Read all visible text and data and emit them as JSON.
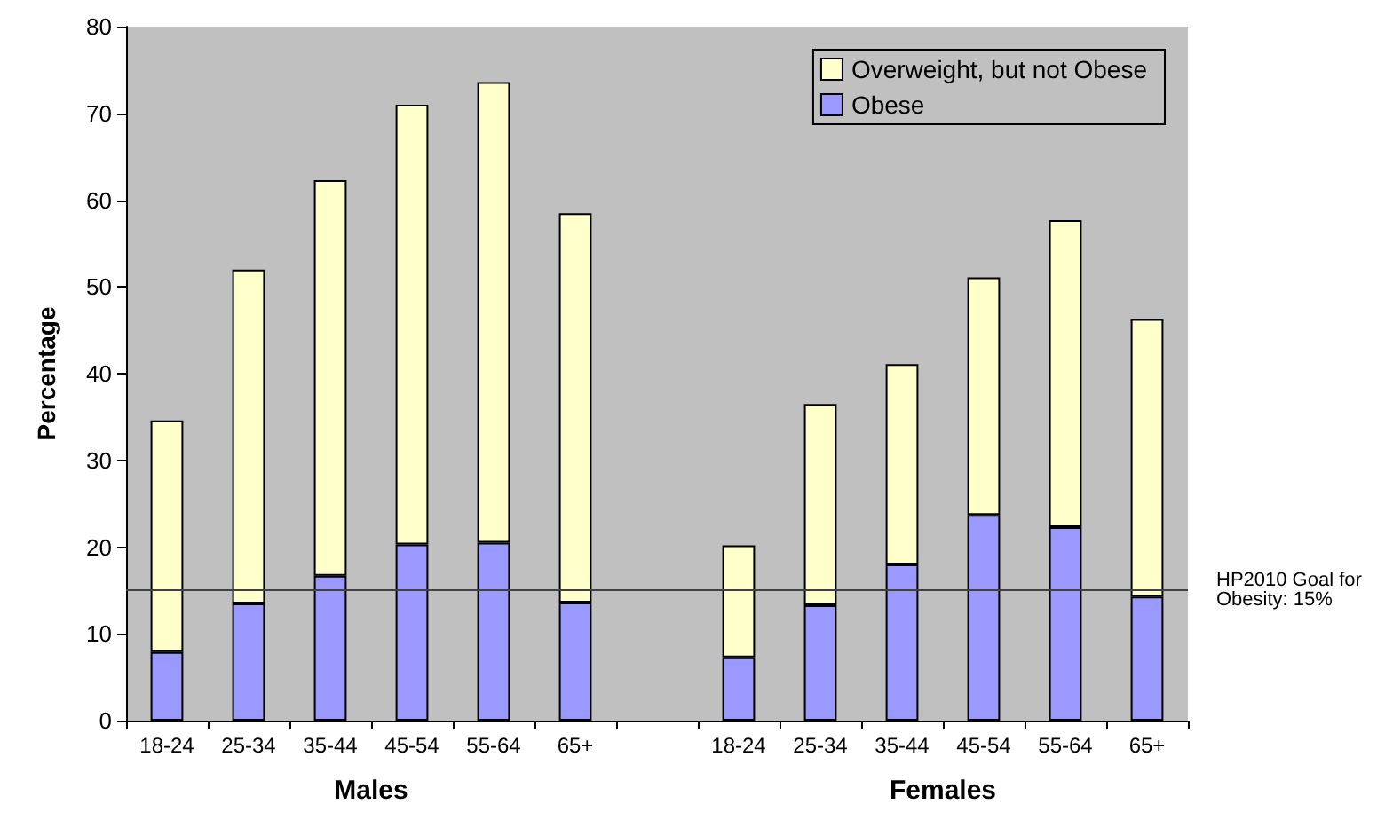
{
  "chart_data": {
    "type": "bar",
    "stacked": true,
    "ylabel": "Percentage",
    "categories": [
      "18-24",
      "25-34",
      "35-44",
      "45-54",
      "55-64",
      "65+",
      null,
      "18-24",
      "25-34",
      "35-44",
      "45-54",
      "55-64",
      "65+"
    ],
    "series": [
      {
        "name": "Obese",
        "color": "#9999ff",
        "values": [
          7.9,
          13.5,
          16.7,
          20.3,
          20.5,
          13.6,
          null,
          7.3,
          13.3,
          18.0,
          23.7,
          22.3,
          14.3
        ]
      },
      {
        "name": "Overweight, but not Obese",
        "color": "#ffffcc",
        "values": [
          26.7,
          38.5,
          45.6,
          50.7,
          53.1,
          44.9,
          null,
          12.9,
          23.2,
          23.1,
          27.4,
          35.4,
          32.0
        ]
      }
    ],
    "ylim": [
      0,
      80
    ],
    "yticks": [
      0,
      10,
      20,
      30,
      40,
      50,
      60,
      70,
      80
    ],
    "grid": false,
    "legend": "top right",
    "ref_lines": [
      {
        "axis": "y",
        "value": 15,
        "label": "HP2010 Goal for Obesity: 15%",
        "color": "#404040"
      }
    ],
    "annotations": [
      "Males",
      "Females"
    ]
  }
}
